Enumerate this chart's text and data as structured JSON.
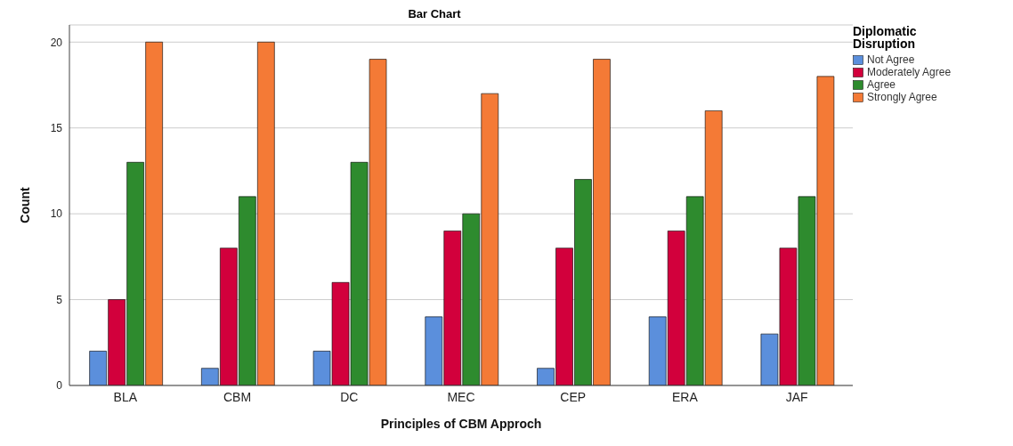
{
  "chart_data": {
    "type": "bar",
    "title": "Bar Chart",
    "xlabel": "Principles of CBM Approch",
    "ylabel": "Count",
    "legend_title": "Diplomatic Disruption",
    "categories": [
      "BLA",
      "CBM",
      "DC",
      "MEC",
      "CEP",
      "ERA",
      "JAF"
    ],
    "series": [
      {
        "name": "Not Agree",
        "color": "#5b8fdc",
        "values": [
          2,
          1,
          2,
          4,
          1,
          4,
          3
        ]
      },
      {
        "name": "Moderately Agree",
        "color": "#d2003c",
        "values": [
          5,
          8,
          6,
          9,
          8,
          9,
          8
        ]
      },
      {
        "name": "Agree",
        "color": "#2e8b2e",
        "values": [
          13,
          11,
          13,
          10,
          12,
          11,
          11
        ]
      },
      {
        "name": "Strongly Agree",
        "color": "#f47a36",
        "values": [
          20,
          20,
          19,
          17,
          19,
          16,
          18
        ]
      }
    ],
    "ylim": [
      0,
      21
    ],
    "yticks": [
      0,
      5,
      10,
      15,
      20
    ],
    "grid": "y",
    "legend": "top right"
  }
}
